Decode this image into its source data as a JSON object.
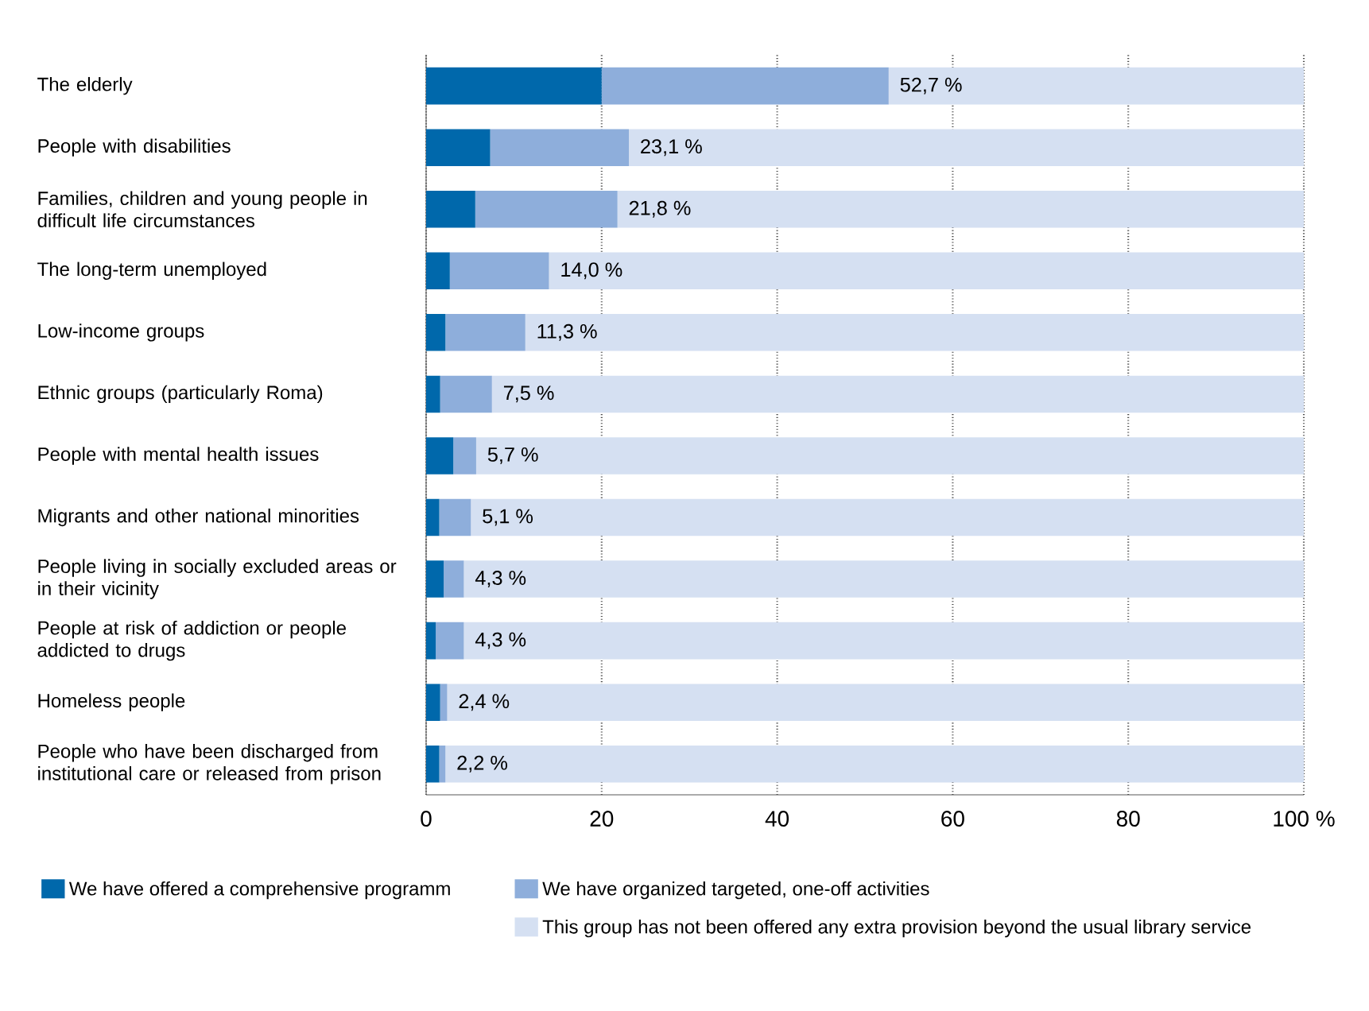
{
  "chart_data": {
    "type": "bar",
    "orientation": "horizontal",
    "stacked": true,
    "categories": [
      "The elderly",
      "People with disabilities",
      "Families, children and young people in difficult life circumstances",
      "The long-term unemployed",
      "Low-income groups",
      "Ethnic groups (particularly Roma)",
      "People with mental health issues",
      "Migrants and other national minorities",
      "People living in socially excluded areas or in their vicinity",
      "People at risk of addiction or people addicted to drugs",
      "Homeless people",
      "People who have been discharged from institutional care or released from prison"
    ],
    "series": [
      {
        "name": "We have offered a comprehensive programm",
        "color": "#0068ab",
        "values": [
          20.0,
          7.3,
          5.6,
          2.7,
          2.2,
          1.6,
          3.1,
          1.5,
          2.0,
          1.1,
          1.6,
          1.5
        ]
      },
      {
        "name": "We have organized targeted, one-off activities",
        "color": "#8eaedb",
        "values": [
          32.7,
          15.8,
          16.2,
          11.3,
          9.1,
          5.9,
          2.6,
          3.6,
          2.3,
          3.2,
          0.8,
          0.7
        ]
      },
      {
        "name": "This group has not been offered any extra provision beyond the usual library service",
        "color": "#d5e0f2",
        "values": [
          47.3,
          76.9,
          78.2,
          86.0,
          88.7,
          92.5,
          94.3,
          94.9,
          95.7,
          95.7,
          97.6,
          97.8
        ]
      }
    ],
    "annotations": [
      {
        "text": "52,7 %",
        "x": 52.7,
        "y": "The elderly"
      },
      {
        "text": "23,1 %",
        "x": 23.1,
        "y": "People with disabilities"
      },
      {
        "text": "21,8 %",
        "x": 21.8,
        "y": "Families, children and young people in difficult life circumstances"
      },
      {
        "text": "14,0 %",
        "x": 14.0,
        "y": "The long-term unemployed"
      },
      {
        "text": "11,3 %",
        "x": 11.3,
        "y": "Low-income groups"
      },
      {
        "text": "7,5 %",
        "x": 7.5,
        "y": "Ethnic groups (particularly Roma)"
      },
      {
        "text": "5,7 %",
        "x": 5.7,
        "y": "People with mental health issues"
      },
      {
        "text": "5,1 %",
        "x": 5.1,
        "y": "Migrants and other national minorities"
      },
      {
        "text": "4,3 %",
        "x": 4.3,
        "y": "People living in socially excluded areas or in their vicinity"
      },
      {
        "text": "4,3 %",
        "x": 4.3,
        "y": "People at risk of addiction or people addicted to drugs"
      },
      {
        "text": "2,4 %",
        "x": 2.4,
        "y": "Homeless people"
      },
      {
        "text": "2,2 %",
        "x": 2.2,
        "y": "People who have been discharged from institutional care or released from prison"
      }
    ],
    "xlim": [
      0,
      100
    ],
    "xticks": [
      0,
      20,
      40,
      60,
      80,
      {
        "value": 100,
        "label": "100 %"
      }
    ],
    "grid": "x",
    "legend": "bottom"
  }
}
